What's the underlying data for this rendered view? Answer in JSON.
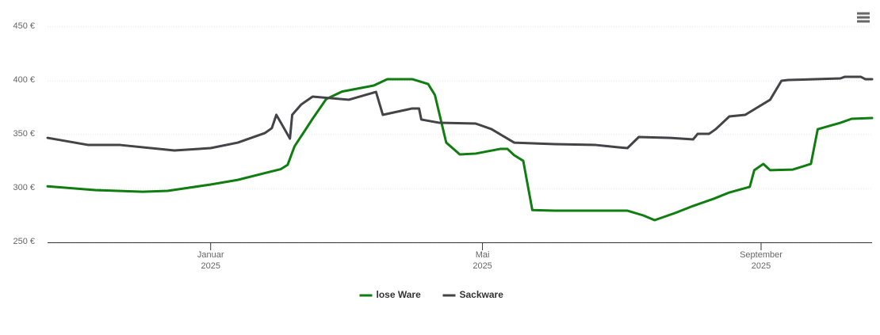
{
  "chart_data": {
    "type": "line",
    "xlim": [
      -72,
      292
    ],
    "xticks": [
      {
        "value": 0,
        "label": [
          "Januar",
          "2025"
        ]
      },
      {
        "value": 120,
        "label": [
          "Mai",
          "2025"
        ]
      },
      {
        "value": 243,
        "label": [
          "September",
          "2025"
        ]
      }
    ],
    "ylim": [
      250,
      450
    ],
    "yticks": [
      {
        "value": 250,
        "label": "250 €"
      },
      {
        "value": 300,
        "label": "300 €"
      },
      {
        "value": 350,
        "label": "350 €"
      },
      {
        "value": 400,
        "label": "400 €"
      },
      {
        "value": 450,
        "label": "450 €"
      }
    ],
    "grid": true,
    "legend": "bottom",
    "series": [
      {
        "name": "lose Ware",
        "color": "#0f7d0f",
        "x": [
          -72,
          -51,
          -30,
          -19,
          0,
          12,
          26,
          31,
          34,
          37,
          45,
          51,
          58,
          72,
          78,
          89,
          96,
          99,
          104,
          110,
          117,
          128,
          131,
          134,
          138,
          142,
          152,
          184,
          191,
          196,
          205,
          213,
          222,
          229,
          238,
          240,
          244,
          247,
          257,
          265,
          268,
          278,
          283,
          292
        ],
        "values": [
          302,
          298.5,
          297,
          297.8,
          303.7,
          308,
          315.4,
          318,
          322,
          339,
          364.7,
          383,
          390,
          395.6,
          401.5,
          401.5,
          397,
          386.8,
          342.6,
          331.6,
          332.4,
          336.8,
          336.8,
          330.9,
          325.7,
          280,
          279.4,
          279.4,
          275,
          270.6,
          277.2,
          283.8,
          290.4,
          296.3,
          301.5,
          317,
          322.8,
          317,
          317.6,
          322.8,
          355,
          361,
          364.7,
          365.4
        ]
      },
      {
        "name": "Sackware",
        "color": "#434348",
        "x": [
          -72,
          -54,
          -40,
          -16,
          0,
          12,
          24,
          27,
          29,
          32,
          35,
          36,
          40,
          45,
          61,
          73,
          76,
          89,
          92,
          93,
          101,
          117,
          124,
          134,
          152,
          170,
          180,
          184,
          189,
          203,
          213,
          215,
          220,
          223,
          229,
          236,
          247,
          252,
          255,
          278,
          280,
          287,
          289,
          292
        ],
        "values": [
          347,
          340.4,
          340.4,
          335.3,
          337.5,
          342.6,
          351.5,
          356,
          368.4,
          357.4,
          346.3,
          368.4,
          378,
          385.3,
          382.4,
          389.7,
          368.4,
          374.3,
          374.3,
          364,
          361,
          360.3,
          355.1,
          342.6,
          341.2,
          340.4,
          338.2,
          337.5,
          347.8,
          347,
          345.6,
          350.7,
          350.7,
          355.1,
          366.9,
          368.4,
          382.4,
          400,
          400.7,
          402.2,
          403.7,
          403.7,
          401.5,
          401.5
        ]
      }
    ]
  }
}
